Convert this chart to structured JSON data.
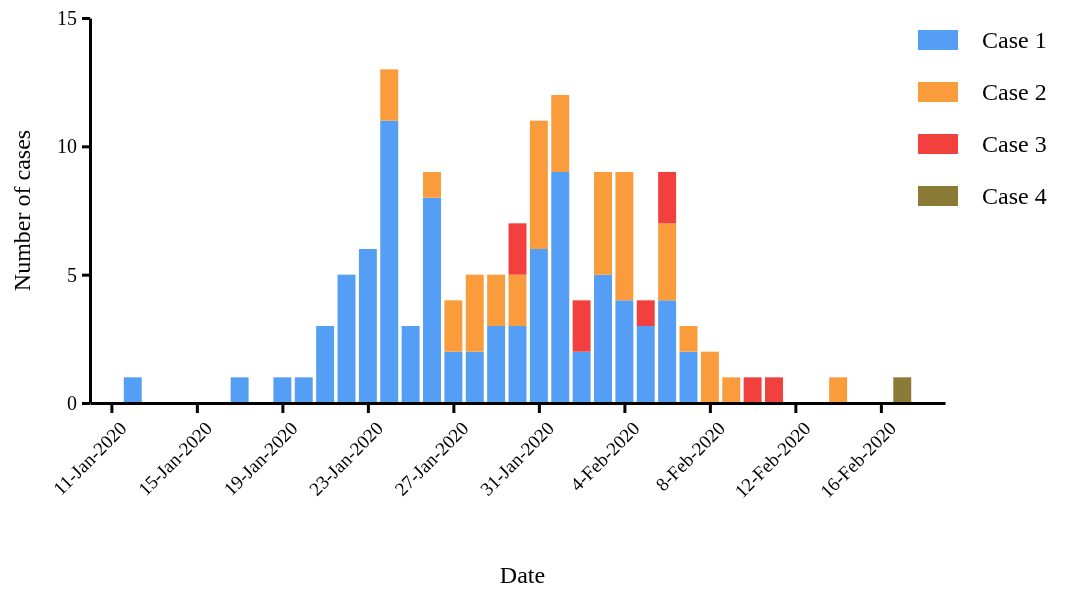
{
  "chart_data": {
    "type": "bar",
    "stacked": true,
    "xlabel": "Date",
    "ylabel": "Number of cases",
    "x": [
      "2020-01-12",
      "2020-01-17",
      "2020-01-19",
      "2020-01-20",
      "2020-01-21",
      "2020-01-22",
      "2020-01-23",
      "2020-01-24",
      "2020-01-25",
      "2020-01-26",
      "2020-01-27",
      "2020-01-28",
      "2020-01-29",
      "2020-01-30",
      "2020-01-31",
      "2020-02-01",
      "2020-02-02",
      "2020-02-03",
      "2020-02-04",
      "2020-02-05",
      "2020-02-06",
      "2020-02-07",
      "2020-02-08",
      "2020-02-09",
      "2020-02-10",
      "2020-02-11",
      "2020-02-14",
      "2020-02-17"
    ],
    "series": [
      {
        "name": "Case 1",
        "color": "#559ef5",
        "values": [
          1,
          1,
          1,
          1,
          3,
          5,
          6,
          11,
          3,
          8,
          2,
          2,
          3,
          3,
          6,
          9,
          2,
          5,
          4,
          3,
          4,
          2,
          0,
          0,
          0,
          0,
          0,
          0
        ]
      },
      {
        "name": "Case 2",
        "color": "#fa9c3c",
        "values": [
          0,
          0,
          0,
          0,
          0,
          0,
          0,
          2,
          0,
          1,
          2,
          3,
          2,
          2,
          5,
          3,
          0,
          4,
          5,
          0,
          3,
          1,
          2,
          1,
          0,
          0,
          1,
          0
        ]
      },
      {
        "name": "Case 3",
        "color": "#f2403f",
        "values": [
          0,
          0,
          0,
          0,
          0,
          0,
          0,
          0,
          0,
          0,
          0,
          0,
          0,
          2,
          0,
          0,
          2,
          0,
          0,
          1,
          2,
          0,
          0,
          0,
          1,
          1,
          0,
          0
        ]
      },
      {
        "name": "Case 4",
        "color": "#8b7a35",
        "values": [
          0,
          0,
          0,
          0,
          0,
          0,
          0,
          0,
          0,
          0,
          0,
          0,
          0,
          0,
          0,
          0,
          0,
          0,
          0,
          0,
          0,
          0,
          0,
          0,
          0,
          0,
          0,
          1
        ]
      }
    ],
    "xlim": [
      "2020-01-10",
      "2020-02-19"
    ],
    "xticks": [
      {
        "value": "2020-01-11",
        "label": "11-Jan-2020"
      },
      {
        "value": "2020-01-15",
        "label": "15-Jan-2020"
      },
      {
        "value": "2020-01-19",
        "label": "19-Jan-2020"
      },
      {
        "value": "2020-01-23",
        "label": "23-Jan-2020"
      },
      {
        "value": "2020-01-27",
        "label": "27-Jan-2020"
      },
      {
        "value": "2020-01-31",
        "label": "31-Jan-2020"
      },
      {
        "value": "2020-02-04",
        "label": "4-Feb-2020"
      },
      {
        "value": "2020-02-08",
        "label": "8-Feb-2020"
      },
      {
        "value": "2020-02-12",
        "label": "12-Feb-2020"
      },
      {
        "value": "2020-02-16",
        "label": "16-Feb-2020"
      }
    ],
    "ylim": [
      0,
      15
    ],
    "yticks": [
      0,
      5,
      10,
      15
    ],
    "legend": "top right"
  }
}
